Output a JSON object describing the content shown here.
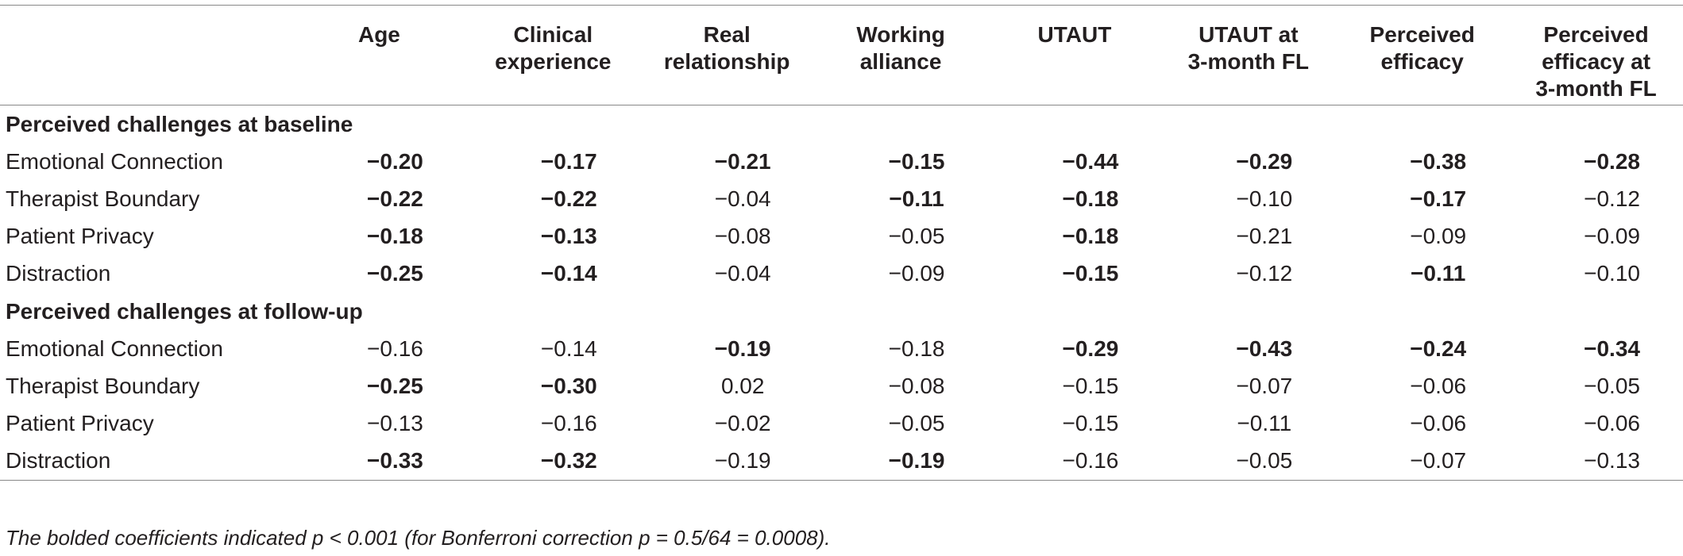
{
  "table": {
    "columns": [
      "",
      "Age",
      "Clinical\nexperience",
      "Real\nrelationship",
      "Working\nalliance",
      "UTAUT",
      "UTAUT at\n3-month FL",
      "Perceived\nefficacy",
      "Perceived\nefficacy at\n3-month FL"
    ],
    "sections": [
      {
        "title": "Perceived challenges at baseline",
        "rows": [
          {
            "label": "Emotional Connection",
            "values": [
              "−0.20",
              "−0.17",
              "−0.21",
              "−0.15",
              "−0.44",
              "−0.29",
              "−0.38",
              "−0.28"
            ],
            "bold": [
              true,
              true,
              true,
              true,
              true,
              true,
              true,
              true
            ]
          },
          {
            "label": "Therapist Boundary",
            "values": [
              "−0.22",
              "−0.22",
              "−0.04",
              "−0.11",
              "−0.18",
              "−0.10",
              "−0.17",
              "−0.12"
            ],
            "bold": [
              true,
              true,
              false,
              true,
              true,
              false,
              true,
              false
            ]
          },
          {
            "label": "Patient Privacy",
            "values": [
              "−0.18",
              "−0.13",
              "−0.08",
              "−0.05",
              "−0.18",
              "−0.21",
              "−0.09",
              "−0.09"
            ],
            "bold": [
              true,
              true,
              false,
              false,
              true,
              false,
              false,
              false
            ]
          },
          {
            "label": "Distraction",
            "values": [
              "−0.25",
              "−0.14",
              "−0.04",
              "−0.09",
              "−0.15",
              "−0.12",
              "−0.11",
              "−0.10"
            ],
            "bold": [
              true,
              true,
              false,
              false,
              true,
              false,
              true,
              false
            ]
          }
        ]
      },
      {
        "title": "Perceived challenges at follow-up",
        "rows": [
          {
            "label": "Emotional Connection",
            "values": [
              "−0.16",
              "−0.14",
              "−0.19",
              "−0.18",
              "−0.29",
              "−0.43",
              "−0.24",
              "−0.34"
            ],
            "bold": [
              false,
              false,
              true,
              false,
              true,
              true,
              true,
              true
            ]
          },
          {
            "label": "Therapist Boundary",
            "values": [
              "−0.25",
              "−0.30",
              "0.02",
              "−0.08",
              "−0.15",
              "−0.07",
              "−0.06",
              "−0.05"
            ],
            "bold": [
              true,
              true,
              false,
              false,
              false,
              false,
              false,
              false
            ]
          },
          {
            "label": "Patient Privacy",
            "values": [
              "−0.13",
              "−0.16",
              "−0.02",
              "−0.05",
              "−0.15",
              "−0.11",
              "−0.06",
              "−0.06"
            ],
            "bold": [
              false,
              false,
              false,
              false,
              false,
              false,
              false,
              false
            ]
          },
          {
            "label": "Distraction",
            "values": [
              "−0.33",
              "−0.32",
              "−0.19",
              "−0.19",
              "−0.16",
              "−0.05",
              "−0.07",
              "−0.13"
            ],
            "bold": [
              true,
              true,
              false,
              true,
              false,
              false,
              false,
              false
            ]
          }
        ]
      }
    ]
  },
  "footnote": "The bolded coefficients indicated p < 0.001 (for Bonferroni correction p = 0.5/64 = 0.0008)."
}
